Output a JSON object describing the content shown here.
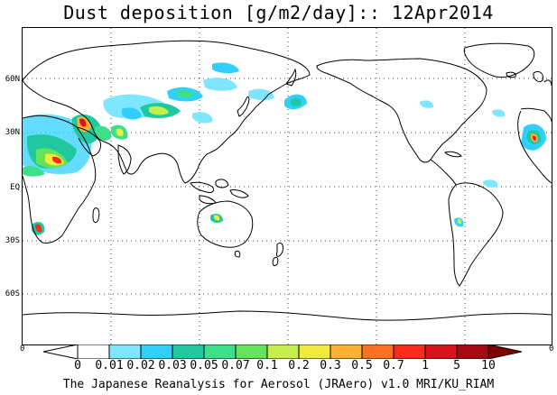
{
  "title": "Dust deposition [g/m2/day]:: 12Apr2014",
  "footer": "The Japanese Reanalysis for Aerosol (JRAero) v1.0 MRI/KU_RIAM",
  "lat_labels": [
    "60N",
    "30N",
    "EQ",
    "30S",
    "60S"
  ],
  "lon_end_labels": [
    "0",
    "0"
  ],
  "colorbar": {
    "labels": [
      "0",
      "0.01",
      "0.02",
      "0.03",
      "0.05",
      "0.07",
      "0.1",
      "0.2",
      "0.3",
      "0.5",
      "0.7",
      "1",
      "5",
      "10"
    ],
    "colors": [
      "#ffffff",
      "#ffffff",
      "#7fe6ff",
      "#2fd0ff",
      "#20c8a0",
      "#3ce08a",
      "#64e35a",
      "#c4ef4a",
      "#f0ea3c",
      "#ffb030",
      "#ff7020",
      "#ff2a1a",
      "#d8141a",
      "#a80a12",
      "#800000"
    ]
  }
}
